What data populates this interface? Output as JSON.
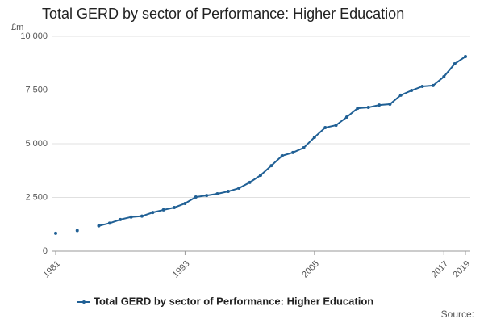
{
  "chart_data": {
    "type": "line",
    "title": "Total GERD by sector of Performance: Higher Education",
    "y_label": "£m",
    "x": [
      1981,
      1982,
      1983,
      1984,
      1985,
      1986,
      1987,
      1988,
      1989,
      1990,
      1991,
      1992,
      1993,
      1994,
      1995,
      1996,
      1997,
      1998,
      1999,
      2000,
      2001,
      2002,
      2003,
      2004,
      2005,
      2006,
      2007,
      2008,
      2009,
      2010,
      2011,
      2012,
      2013,
      2014,
      2015,
      2016,
      2017,
      2018,
      2019
    ],
    "series": [
      {
        "name": "Total GERD by sector of Performance: Higher Education",
        "color": "#206095",
        "values": [
          830,
          null,
          960,
          null,
          1180,
          1300,
          1470,
          1590,
          1630,
          1800,
          1920,
          2030,
          2220,
          2520,
          2590,
          2670,
          2780,
          2930,
          3200,
          3530,
          3980,
          4440,
          4590,
          4810,
          5300,
          5750,
          5860,
          6240,
          6650,
          6690,
          6800,
          6840,
          7260,
          7480,
          7670,
          7710,
          8120,
          8720,
          9060
        ]
      }
    ],
    "xlim": [
      1981,
      2019
    ],
    "xticks": [
      1981,
      1993,
      2005,
      2017,
      2019
    ],
    "ylim": [
      0,
      10000
    ],
    "yticks": [
      0,
      {
        "value": 2500,
        "label": "2 500"
      },
      {
        "value": 5000,
        "label": "5 000"
      },
      {
        "value": 7500,
        "label": "7 500"
      },
      {
        "value": 10000,
        "label": "10 000"
      }
    ],
    "grid": true,
    "legend": "bottom",
    "source": "Source:"
  }
}
